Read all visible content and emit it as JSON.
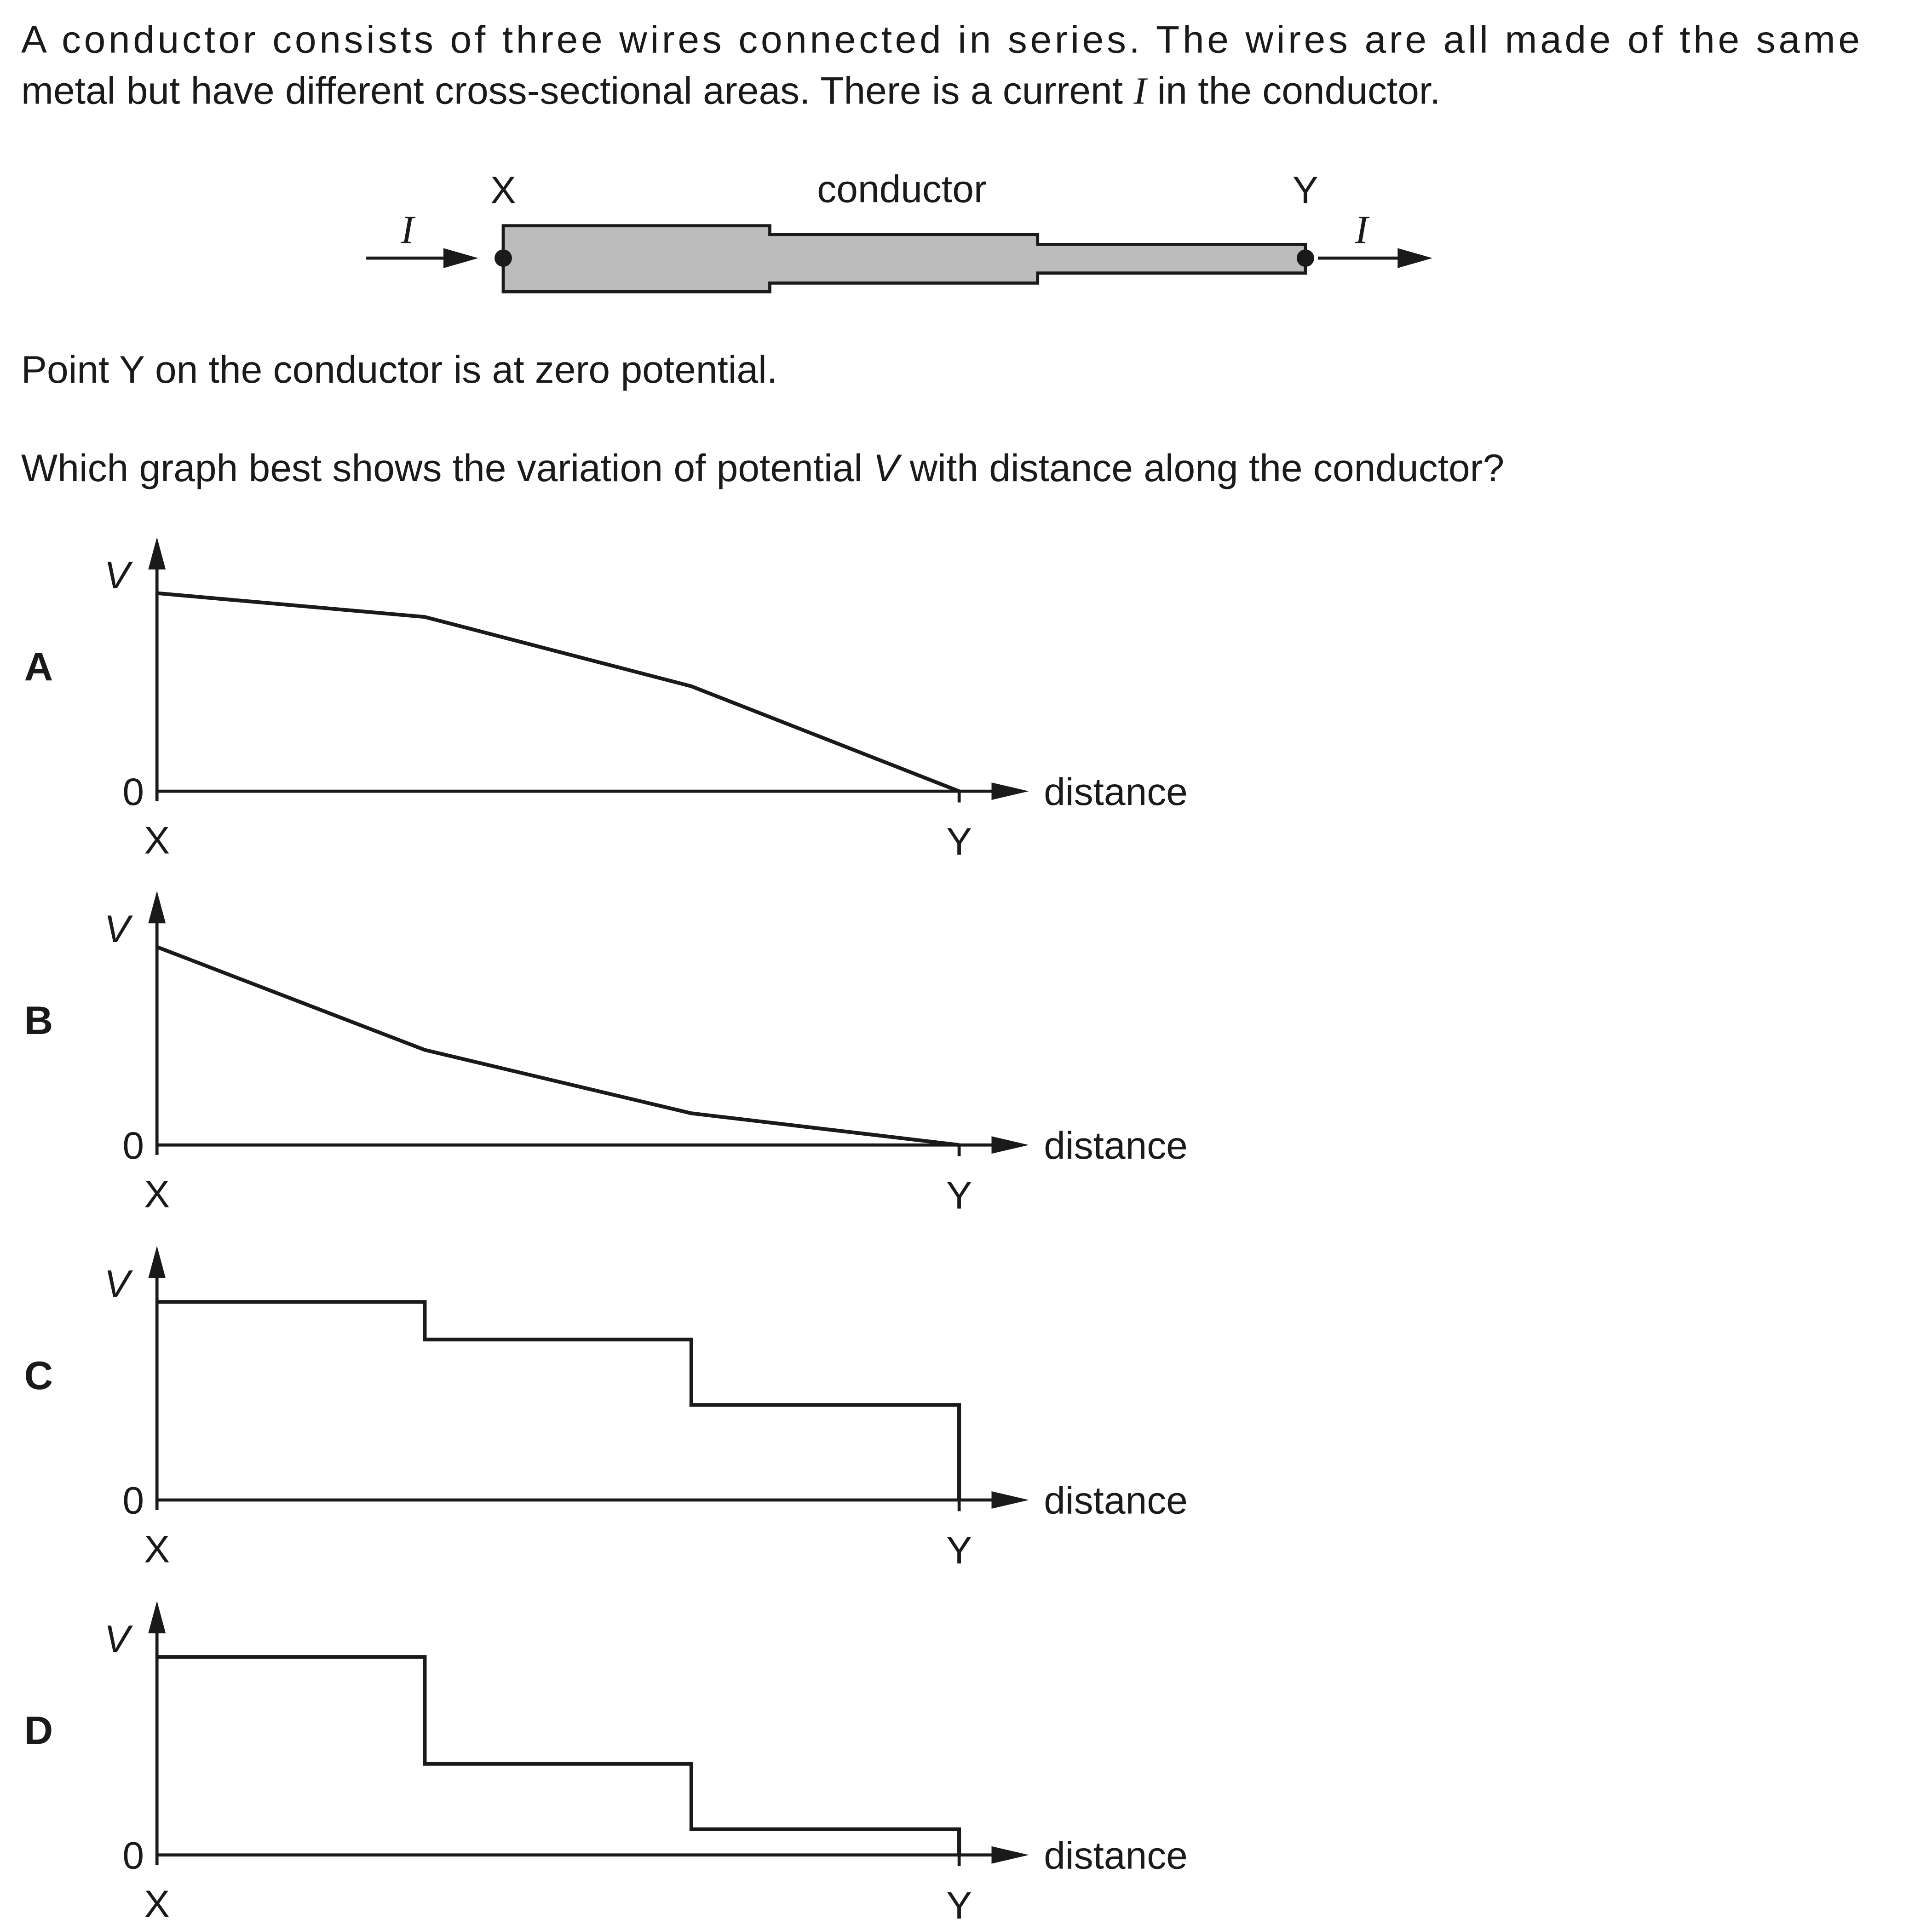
{
  "question": {
    "line1": "A conductor consists of three wires connected in series. The wires are all made of the same",
    "line2_start": "metal but have different cross-sectional areas. There is a current ",
    "current_symbol": "I",
    "line2_end": " in the conductor.",
    "statement": "Point Y on the conductor is at zero potential.",
    "prompt_start": "Which graph best shows the variation of potential ",
    "potential_symbol": "V",
    "prompt_end": " with distance along the conductor?"
  },
  "conductor_diagram": {
    "label_x": "X",
    "label_y": "Y",
    "label_conductor": "conductor",
    "current_in": "I",
    "current_out": "I",
    "fill_color": "#bcbcbc"
  },
  "graph_labels": {
    "v_axis": "V",
    "zero": "0",
    "x_start": "X",
    "x_end": "Y",
    "distance": "distance"
  },
  "options": [
    {
      "letter": "A",
      "kind": "line",
      "v": [
        1.0,
        0.88,
        0.53,
        0.0
      ]
    },
    {
      "letter": "B",
      "kind": "line",
      "v": [
        1.0,
        0.48,
        0.16,
        0.0
      ]
    },
    {
      "letter": "C",
      "kind": "step",
      "v": [
        1.0,
        0.81,
        0.48
      ]
    },
    {
      "letter": "D",
      "kind": "step",
      "v": [
        1.0,
        0.46,
        0.13
      ]
    }
  ]
}
